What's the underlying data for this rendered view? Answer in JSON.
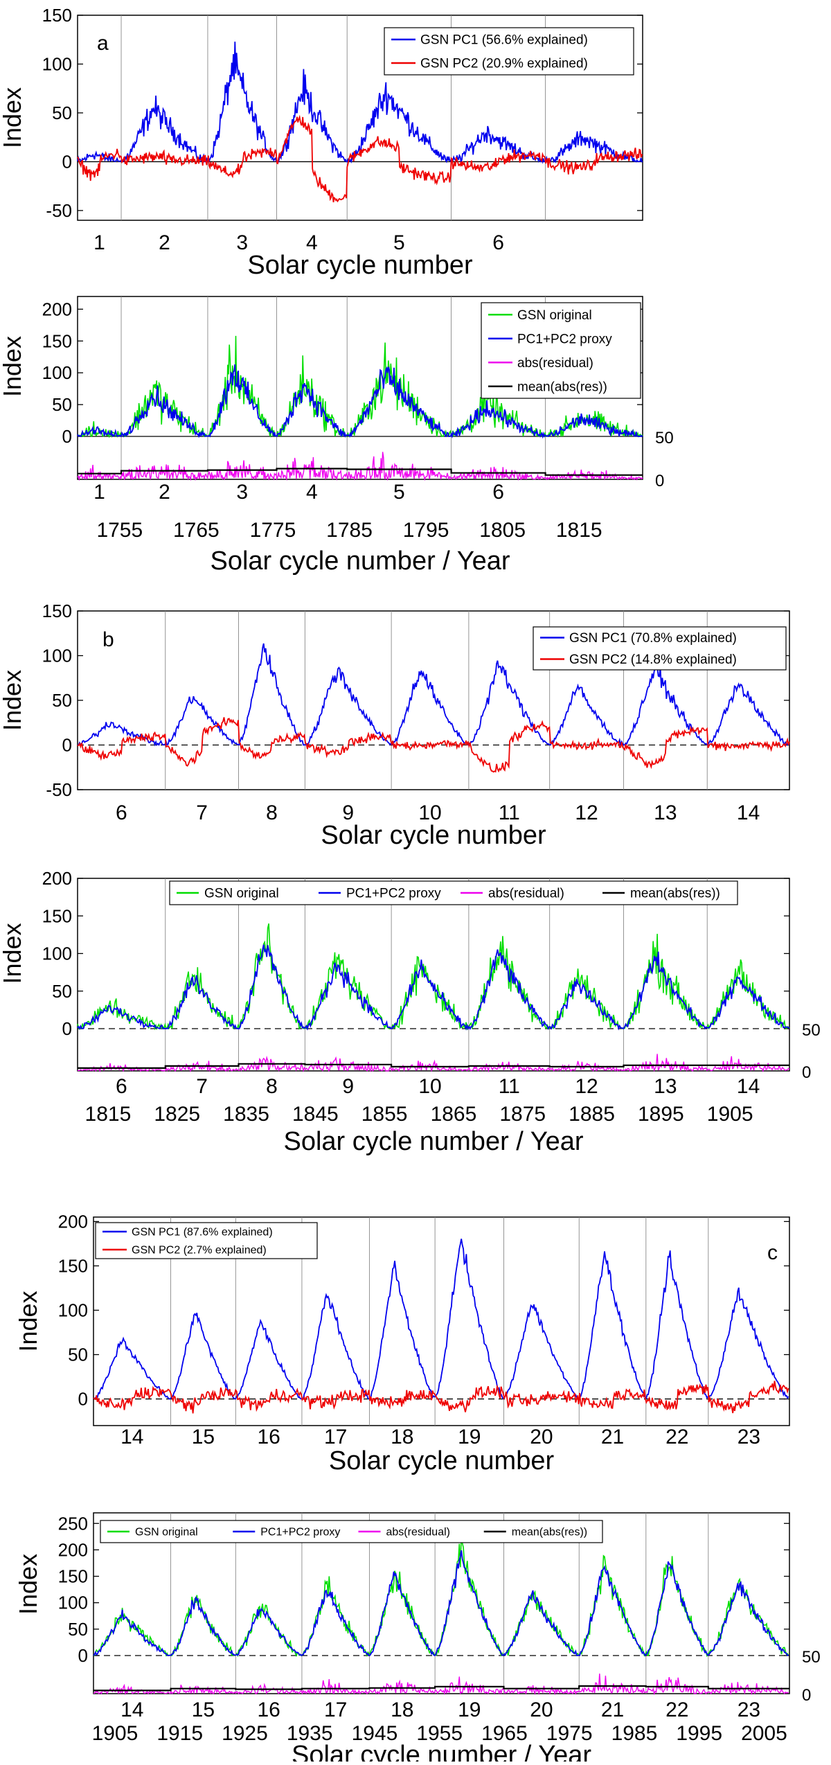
{
  "colors": {
    "pc1": "#0000ee",
    "pc2": "#ee0000",
    "gsn": "#00dd00",
    "proxy": "#0000ee",
    "residual": "#ee00ee",
    "mean": "#000000",
    "axis": "#000000",
    "grid": "#888888"
  },
  "chart_data": [
    {
      "id": "a-pc",
      "type": "line",
      "panel_label": "a",
      "ylabel": "Index",
      "xlabel": "Solar cycle number",
      "ylim": [
        -60,
        150
      ],
      "yticks": [
        "150",
        "100",
        "50",
        "0",
        "-50"
      ],
      "ytick_values": [
        150,
        100,
        50,
        0,
        -50
      ],
      "cycle_boundaries": [
        1755.2,
        1766.5,
        1775.5,
        1784.7,
        1798.3,
        1810.6
      ],
      "x_range": [
        1749.5,
        1823.3
      ],
      "cycle_numbers": [
        "1",
        "2",
        "3",
        "4",
        "5",
        "6"
      ],
      "legend": [
        "GSN PC1 (56.6% explained)",
        "GSN PC2 (20.9% explained)"
      ],
      "zero_line": "solid",
      "series": [
        {
          "name": "GSN PC1 (56.6% explained)",
          "color_key": "pc1",
          "amp": [
            8,
            55,
            100,
            75,
            70,
            30,
            25
          ],
          "noise": 18
        },
        {
          "name": "GSN PC2 (20.9% explained)",
          "color_key": "pc2",
          "pc2": [
            [
              -15,
              10
            ],
            [
              5,
              0
            ],
            [
              -15,
              12
            ],
            [
              55,
              -45
            ],
            [
              25,
              -20
            ],
            [
              -8,
              8
            ]
          ],
          "noise": 10
        }
      ]
    },
    {
      "id": "a-proxy",
      "type": "line",
      "ylabel": "Index",
      "xlabel": "Solar cycle number / Year",
      "ylim": [
        0,
        220
      ],
      "yticks": [
        "200",
        "150",
        "100",
        "50",
        "0"
      ],
      "ytick_values": [
        200,
        150,
        100,
        50,
        0
      ],
      "cycle_boundaries": [
        1755.2,
        1766.5,
        1775.5,
        1784.7,
        1798.3,
        1810.6
      ],
      "x_range": [
        1749.5,
        1823.3
      ],
      "cycle_numbers": [
        "1",
        "2",
        "3",
        "4",
        "5",
        "6"
      ],
      "years": [
        "1755",
        "1765",
        "1775",
        "1785",
        "1795",
        "1805",
        "1815"
      ],
      "year_values": [
        1755,
        1765,
        1775,
        1785,
        1795,
        1805,
        1815
      ],
      "legend": [
        "GSN original",
        "PC1+PC2 proxy",
        "abs(residual)",
        "mean(abs(res))"
      ],
      "residual_axis": [
        "50",
        "0"
      ],
      "zero_line": "solid",
      "series": [
        {
          "name": "GSN original",
          "color_key": "gsn",
          "amp": [
            10,
            70,
            110,
            85,
            100,
            50,
            30
          ],
          "noise": 40
        },
        {
          "name": "PC1+PC2 proxy",
          "color_key": "proxy",
          "amp": [
            10,
            65,
            105,
            82,
            95,
            45,
            28
          ],
          "noise": 22
        },
        {
          "name": "abs(residual)",
          "color_key": "residual",
          "means": [
            8,
            12,
            13,
            15,
            14,
            9,
            6
          ]
        },
        {
          "name": "mean(abs(res))",
          "color_key": "mean",
          "means": [
            8,
            12,
            13,
            15,
            14,
            9,
            6
          ]
        }
      ]
    },
    {
      "id": "b-pc",
      "type": "line",
      "panel_label": "b",
      "ylabel": "Index",
      "xlabel": "Solar cycle number",
      "ylim": [
        -50,
        150
      ],
      "yticks": [
        "150",
        "100",
        "50",
        "0",
        "-50"
      ],
      "ytick_values": [
        150,
        100,
        50,
        0,
        -50
      ],
      "cycle_boundaries": [
        1823.3,
        1833.9,
        1843.5,
        1856.0,
        1867.2,
        1878.9,
        1889.6,
        1901.7
      ],
      "x_range": [
        1810.6,
        1913.6
      ],
      "cycle_numbers": [
        "6",
        "7",
        "8",
        "9",
        "10",
        "11",
        "12",
        "13",
        "14"
      ],
      "legend": [
        "GSN PC1 (70.8% explained)",
        "GSN PC2 (14.8% explained)"
      ],
      "zero_line": "dashed",
      "series": [
        {
          "name": "GSN PC1 (70.8% explained)",
          "color_key": "pc1",
          "amp": [
            25,
            55,
            110,
            85,
            85,
            90,
            65,
            85,
            70
          ],
          "noise": 10
        },
        {
          "name": "GSN PC2 (14.8% explained)",
          "color_key": "pc2",
          "pc2": [
            [
              -15,
              12
            ],
            [
              -25,
              30
            ],
            [
              -15,
              12
            ],
            [
              -10,
              10
            ],
            [
              -1,
              2
            ],
            [
              -35,
              25
            ],
            [
              -1,
              1
            ],
            [
              -25,
              20
            ],
            [
              -1,
              1
            ]
          ],
          "noise": 8
        }
      ]
    },
    {
      "id": "b-proxy",
      "type": "line",
      "ylabel": "Index",
      "xlabel": "Solar cycle number / Year",
      "ylim": [
        0,
        200
      ],
      "yticks": [
        "200",
        "150",
        "100",
        "50",
        "0"
      ],
      "ytick_values": [
        200,
        150,
        100,
        50,
        0
      ],
      "cycle_boundaries": [
        1823.3,
        1833.9,
        1843.5,
        1856.0,
        1867.2,
        1878.9,
        1889.6,
        1901.7
      ],
      "x_range": [
        1810.6,
        1913.6
      ],
      "cycle_numbers": [
        "6",
        "7",
        "8",
        "9",
        "10",
        "11",
        "12",
        "13",
        "14"
      ],
      "years": [
        "1815",
        "1825",
        "1835",
        "1845",
        "1855",
        "1865",
        "1875",
        "1885",
        "1895",
        "1905"
      ],
      "year_values": [
        1815,
        1825,
        1835,
        1845,
        1855,
        1865,
        1875,
        1885,
        1895,
        1905
      ],
      "legend": [
        "GSN original",
        "PC1+PC2 proxy",
        "abs(residual)",
        "mean(abs(res))"
      ],
      "residual_axis": [
        "50",
        "0"
      ],
      "zero_line": "dashed",
      "series": [
        {
          "name": "GSN original",
          "color_key": "gsn",
          "amp": [
            30,
            70,
            120,
            90,
            85,
            105,
            70,
            95,
            75
          ],
          "noise": 30
        },
        {
          "name": "PC1+PC2 proxy",
          "color_key": "proxy",
          "amp": [
            28,
            65,
            115,
            85,
            82,
            100,
            65,
            92,
            70
          ],
          "noise": 15
        },
        {
          "name": "abs(residual)",
          "color_key": "residual",
          "means": [
            4,
            7,
            10,
            9,
            6,
            7,
            6,
            8,
            8
          ]
        },
        {
          "name": "mean(abs(res))",
          "color_key": "mean",
          "means": [
            4,
            7,
            10,
            9,
            6,
            7,
            6,
            8,
            8
          ]
        }
      ]
    },
    {
      "id": "c-pc",
      "type": "line",
      "panel_label": "c",
      "ylabel": "Index",
      "xlabel": "Solar cycle number",
      "ylim": [
        -30,
        205
      ],
      "yticks": [
        "200",
        "150",
        "100",
        "50",
        "0"
      ],
      "ytick_values": [
        200,
        150,
        100,
        50,
        0
      ],
      "cycle_boundaries": [
        1913.6,
        1923.6,
        1933.8,
        1944.2,
        1954.3,
        1964.9,
        1976.5,
        1986.8,
        1996.4
      ],
      "x_range": [
        1901.7,
        2008.9
      ],
      "cycle_numbers": [
        "14",
        "15",
        "16",
        "17",
        "18",
        "19",
        "20",
        "21",
        "22",
        "23"
      ],
      "legend": [
        "GSN PC1 (87.6% explained)",
        "GSN PC2 (2.7% explained)"
      ],
      "zero_line": "dashed",
      "series": [
        {
          "name": "GSN PC1 (87.6% explained)",
          "color_key": "pc1",
          "amp": [
            68,
            98,
            88,
            120,
            150,
            180,
            110,
            165,
            160,
            120
          ],
          "noise": 8
        },
        {
          "name": "GSN PC2 (2.7% explained)",
          "color_key": "pc2",
          "pc2": [
            [
              -10,
              10
            ],
            [
              -8,
              8
            ],
            [
              -7,
              6
            ],
            [
              -5,
              5
            ],
            [
              -6,
              6
            ],
            [
              -10,
              10
            ],
            [
              -4,
              4
            ],
            [
              -8,
              8
            ],
            [
              -12,
              14
            ],
            [
              -12,
              14
            ]
          ],
          "noise": 12
        }
      ]
    },
    {
      "id": "c-proxy",
      "type": "line",
      "ylabel": "Index",
      "xlabel": "Solar cycle number / Year",
      "ylim": [
        0,
        270
      ],
      "yticks": [
        "250",
        "200",
        "150",
        "100",
        "50",
        "0"
      ],
      "ytick_values": [
        250,
        200,
        150,
        100,
        50,
        0
      ],
      "cycle_boundaries": [
        1913.6,
        1923.6,
        1933.8,
        1944.2,
        1954.3,
        1964.9,
        1976.5,
        1986.8,
        1996.4
      ],
      "x_range": [
        1901.7,
        2008.9
      ],
      "cycle_numbers": [
        "14",
        "15",
        "16",
        "17",
        "18",
        "19",
        "20",
        "21",
        "22",
        "23"
      ],
      "years": [
        "1905",
        "1915",
        "1925",
        "1935",
        "1945",
        "1955",
        "1965",
        "1975",
        "1985",
        "1995",
        "2005"
      ],
      "year_values": [
        1905,
        1915,
        1925,
        1935,
        1945,
        1955,
        1965,
        1975,
        1985,
        1995,
        2005
      ],
      "legend": [
        "GSN original",
        "PC1+PC2 proxy",
        "abs(residual)",
        "mean(abs(res))"
      ],
      "residual_axis": [
        "50",
        "0"
      ],
      "zero_line": "dashed",
      "series": [
        {
          "name": "GSN original",
          "color_key": "gsn",
          "amp": [
            80,
            110,
            95,
            130,
            160,
            200,
            120,
            175,
            180,
            140
          ],
          "noise": 28
        },
        {
          "name": "PC1+PC2 proxy",
          "color_key": "proxy",
          "amp": [
            78,
            105,
            92,
            125,
            155,
            190,
            115,
            170,
            175,
            135
          ],
          "noise": 14
        },
        {
          "name": "abs(residual)",
          "color_key": "residual",
          "means": [
            5,
            8,
            7,
            8,
            9,
            11,
            8,
            12,
            11,
            8
          ]
        },
        {
          "name": "mean(abs(res))",
          "color_key": "mean",
          "means": [
            5,
            8,
            7,
            8,
            9,
            11,
            8,
            12,
            11,
            8
          ]
        }
      ]
    }
  ]
}
